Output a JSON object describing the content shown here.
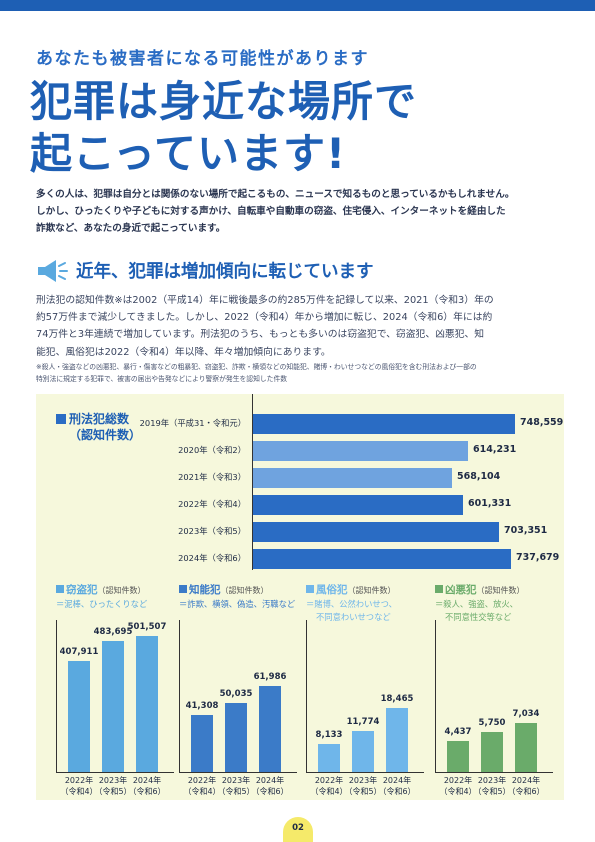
{
  "header": {
    "subtitle": "あなたも被害者になる可能性があります",
    "title": "犯罪は身近な場所で\n起こっています!"
  },
  "intro": "多くの人は、犯罪は自分とは関係のない場所で起こるもの、ニュースで知るものと思っているかもしれません。\nしかし、ひったくりや子どもに対する声かけ、自転車や自動車の窃盗、住宅侵入、インターネットを経由した\n詐欺など、あなたの身近で起こっています。",
  "section": {
    "title": "近年、犯罪は増加傾向に転じています",
    "icon": "megaphone-icon",
    "body": "刑法犯の認知件数※は2002（平成14）年に戦後最多の約285万件を記録して以来、2021（令和3）年の\n約57万件まで減少してきました。しかし、2022（令和4）年から増加に転じ、2024（令和6）年には約\n74万件と3年連続で増加しています。刑法犯のうち、もっとも多いのは窃盗犯で、窃盗犯、凶悪犯、知\n能犯、風俗犯は2022（令和4）年以降、年々増加傾向にあります。",
    "footnote": "※殺人・強盗などの凶悪犯、暴行・傷害などの粗暴犯、窃盗犯、詐欺・横領などの知能犯、賭博・わいせつなどの風俗犯を含む刑法および一部の\n特別法に規定する犯罪で、被害の届出や告発などにより警察が発生を認知した件数"
  },
  "colors": {
    "accent": "#1e5fb4",
    "bar_dark": "#2a6cc4",
    "bar_light": "#6fa3df",
    "chizoku": "#5aa9df",
    "chino": "#3b7bc8",
    "fuzoku": "#6fb6ea",
    "kyoaku": "#6aab6a",
    "panel": "#f6f8dc"
  },
  "main_chart": {
    "label_line1": "刑法犯総数",
    "label_line2": "（認知件数）"
  },
  "chart_data": [
    {
      "type": "bar",
      "title": "刑法犯総数（認知件数）",
      "categories": [
        "2019年（平成31・令和元）",
        "2020年（令和2）",
        "2021年（令和3）",
        "2022年（令和4）",
        "2023年（令和5）",
        "2024年（令和6）"
      ],
      "values": [
        748559,
        614231,
        568104,
        601331,
        703351,
        737679
      ],
      "value_labels": [
        "748,559",
        "614,231",
        "568,104",
        "601,331",
        "703,351",
        "737,679"
      ],
      "orientation": "horizontal",
      "highlight": [
        true,
        false,
        false,
        true,
        true,
        true
      ]
    },
    {
      "type": "bar",
      "title": "窃盗犯",
      "count_label": "（認知件数）",
      "examples": "＝泥棒、ひったくりなど",
      "categories": [
        [
          "2022年",
          "（令和4）"
        ],
        [
          "2023年",
          "（令和5）"
        ],
        [
          "2024年",
          "（令和6）"
        ]
      ],
      "values": [
        407911,
        483695,
        501507
      ],
      "value_labels": [
        "407,911",
        "483,695",
        "501,507"
      ],
      "ylim": [
        0,
        560000
      ]
    },
    {
      "type": "bar",
      "title": "知能犯",
      "count_label": "（認知件数）",
      "examples": "＝詐欺、横領、偽造、汚職など",
      "categories": [
        [
          "2022年",
          "（令和4）"
        ],
        [
          "2023年",
          "（令和5）"
        ],
        [
          "2024年",
          "（令和6）"
        ]
      ],
      "values": [
        41308,
        50035,
        61986
      ],
      "value_labels": [
        "41,308",
        "50,035",
        "61,986"
      ],
      "ylim": [
        0,
        110000
      ]
    },
    {
      "type": "bar",
      "title": "風俗犯",
      "count_label": "（認知件数）",
      "examples": "＝賭博、公然わいせつ、\n不同意わいせつなど",
      "categories": [
        [
          "2022年",
          "（令和4）"
        ],
        [
          "2023年",
          "（令和5）"
        ],
        [
          "2024年",
          "（令和6）"
        ]
      ],
      "values": [
        8133,
        11774,
        18465
      ],
      "value_labels": [
        "8,133",
        "11,774",
        "18,465"
      ],
      "ylim": [
        0,
        44000
      ]
    },
    {
      "type": "bar",
      "title": "凶悪犯",
      "count_label": "（認知件数）",
      "examples": "＝殺人、強盗、放火、\n不同意性交等など",
      "categories": [
        [
          "2022年",
          "（令和4）"
        ],
        [
          "2023年",
          "（令和5）"
        ],
        [
          "2024年",
          "（令和6）"
        ]
      ],
      "values": [
        4437,
        5750,
        7034
      ],
      "value_labels": [
        "4,437",
        "5,750",
        "7,034"
      ],
      "ylim": [
        0,
        22000
      ]
    }
  ],
  "page_number": "02"
}
